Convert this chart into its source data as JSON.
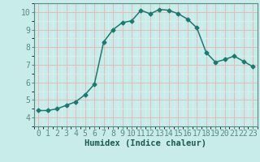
{
  "x": [
    0,
    1,
    2,
    3,
    4,
    5,
    6,
    7,
    8,
    9,
    10,
    11,
    12,
    13,
    14,
    15,
    16,
    17,
    18,
    19,
    20,
    21,
    22,
    23
  ],
  "y": [
    4.4,
    4.4,
    4.5,
    4.7,
    4.9,
    5.3,
    5.9,
    8.3,
    9.0,
    9.4,
    9.5,
    10.1,
    9.9,
    10.15,
    10.1,
    9.9,
    9.6,
    9.1,
    7.7,
    7.15,
    7.3,
    7.5,
    7.2,
    6.9
  ],
  "line_color": "#1a7a6e",
  "marker": "D",
  "marker_size": 2.5,
  "bg_color": "#c8ecea",
  "grid_major_color": "#e8b8b8",
  "grid_minor_color": "#dff0ee",
  "xlabel": "Humidex (Indice chaleur)",
  "xlim": [
    -0.5,
    23.5
  ],
  "ylim": [
    3.5,
    10.5
  ],
  "yticks": [
    4,
    5,
    6,
    7,
    8,
    9,
    10
  ],
  "xticks": [
    0,
    1,
    2,
    3,
    4,
    5,
    6,
    7,
    8,
    9,
    10,
    11,
    12,
    13,
    14,
    15,
    16,
    17,
    18,
    19,
    20,
    21,
    22,
    23
  ],
  "label_fontsize": 7.5,
  "tick_fontsize": 7,
  "spine_color": "#5a8a80"
}
